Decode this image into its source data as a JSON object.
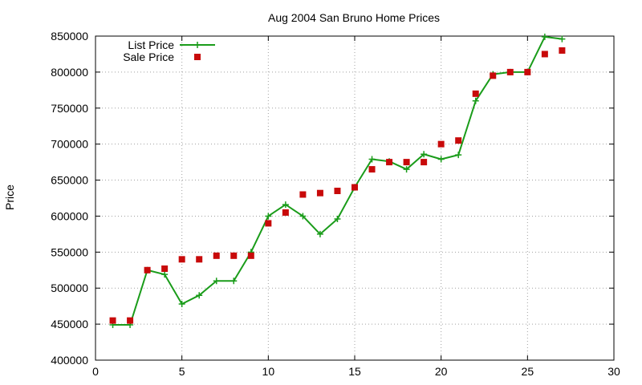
{
  "chart_data": {
    "type": "line",
    "title": "Aug 2004 San Bruno Home Prices",
    "xlabel": "",
    "ylabel": "Price",
    "xlim": [
      0,
      30
    ],
    "ylim": [
      400000,
      850000
    ],
    "x_ticks": [
      0,
      5,
      10,
      15,
      20,
      25,
      30
    ],
    "y_ticks": [
      400000,
      450000,
      500000,
      550000,
      600000,
      650000,
      700000,
      750000,
      800000,
      850000
    ],
    "grid": true,
    "legend_position": "top-left",
    "series": [
      {
        "name": "List Price",
        "style": "line-points",
        "color": "#1a9c1a",
        "x": [
          1,
          2,
          3,
          4,
          5,
          6,
          7,
          8,
          9,
          10,
          11,
          12,
          13,
          14,
          15,
          16,
          17,
          18,
          19,
          20,
          21,
          22,
          23,
          24,
          25,
          26,
          27
        ],
        "y": [
          449000,
          449000,
          525000,
          519000,
          478000,
          490000,
          510000,
          510000,
          550000,
          600000,
          616000,
          600000,
          575000,
          596000,
          640000,
          679000,
          676000,
          665000,
          686000,
          679000,
          685000,
          760000,
          797000,
          800000,
          800000,
          849000,
          846000
        ]
      },
      {
        "name": "Sale Price",
        "style": "points",
        "color": "#c80a0a",
        "x": [
          1,
          2,
          3,
          4,
          5,
          6,
          7,
          8,
          9,
          10,
          11,
          12,
          13,
          14,
          15,
          16,
          17,
          18,
          19,
          20,
          21,
          22,
          23,
          24,
          25,
          26,
          27
        ],
        "y": [
          455000,
          455000,
          525000,
          527000,
          540000,
          540000,
          545000,
          545000,
          545000,
          590000,
          605000,
          630000,
          632000,
          635000,
          640000,
          665000,
          675000,
          675000,
          675000,
          700000,
          705000,
          770000,
          795000,
          800000,
          800000,
          825000,
          830000
        ]
      }
    ]
  }
}
